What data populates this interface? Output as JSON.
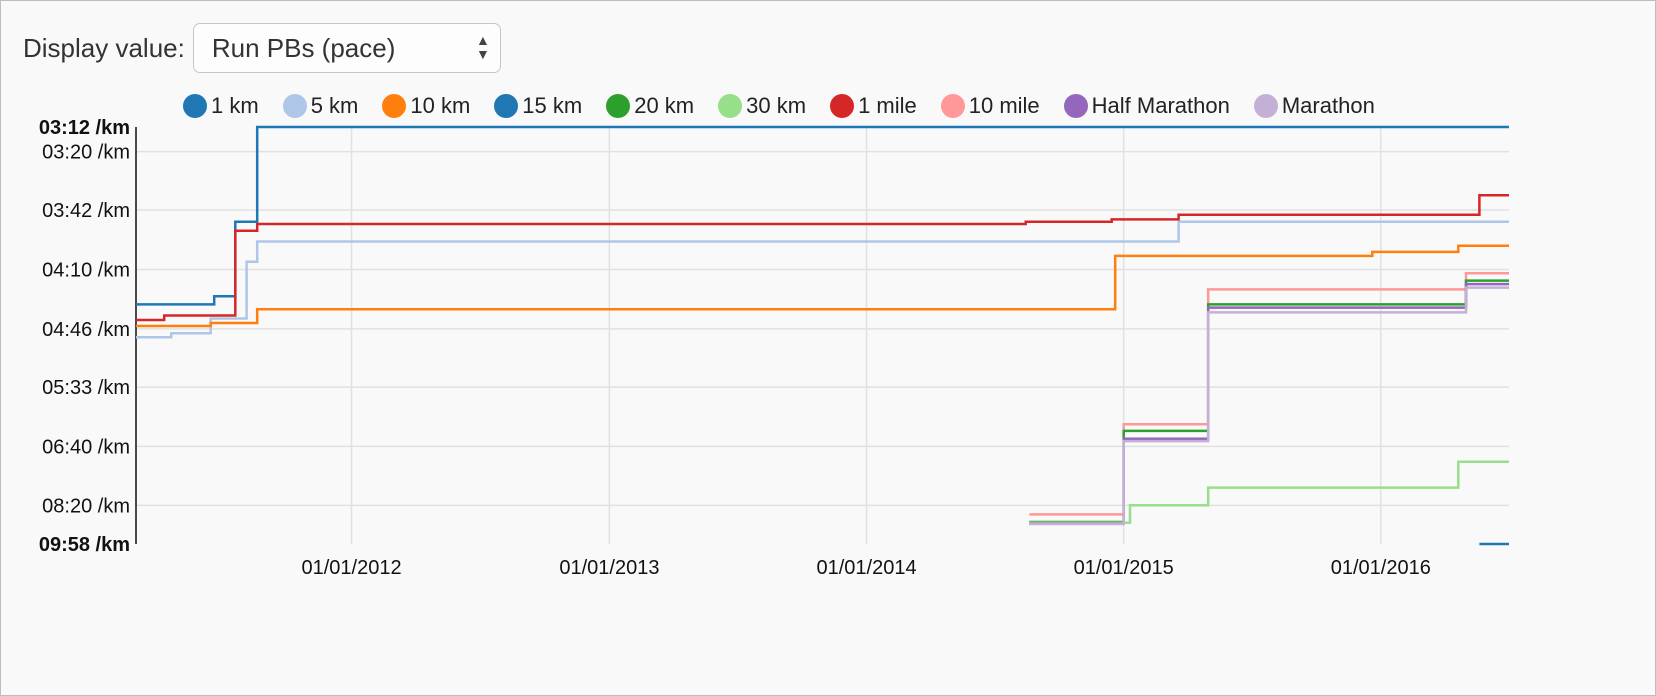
{
  "control": {
    "label": "Display value:",
    "selected": "Run PBs (pace)"
  },
  "legend": [
    {
      "name": "1 km",
      "color": "#1f77b4"
    },
    {
      "name": "5 km",
      "color": "#aec7e8"
    },
    {
      "name": "10 km",
      "color": "#ff7f0e"
    },
    {
      "name": "15 km",
      "color": "#1f77b4"
    },
    {
      "name": "20 km",
      "color": "#2ca02c"
    },
    {
      "name": "30 km",
      "color": "#98df8a"
    },
    {
      "name": "1 mile",
      "color": "#d62728"
    },
    {
      "name": "10 mile",
      "color": "#ff9896"
    },
    {
      "name": "Half Marathon",
      "color": "#9467bd"
    },
    {
      "name": "Marathon",
      "color": "#c5b0d5"
    }
  ],
  "chart_data": {
    "type": "line",
    "step": "after",
    "title": "",
    "xlabel": "",
    "ylabel": "",
    "x_domain": [
      "2011-03-01",
      "2016-07-01"
    ],
    "y_scale": "reciprocal (speed)",
    "y_domain_pace": [
      "09:58 /km",
      "03:12 /km"
    ],
    "y_ticks": [
      "03:20 /km",
      "03:42 /km",
      "04:10 /km",
      "04:46 /km",
      "05:33 /km",
      "06:40 /km",
      "08:20 /km"
    ],
    "y_bound_labels": [
      "03:12 /km",
      "09:58 /km"
    ],
    "x_ticks": [
      "01/01/2012",
      "01/01/2013",
      "01/01/2014",
      "01/01/2015",
      "01/01/2016"
    ],
    "grid": true,
    "series": [
      {
        "name": "1 km",
        "color": "#1f77b4",
        "points": [
          [
            "2016-05-20",
            "09:58 /km"
          ],
          [
            "2016-07-01",
            "09:58 /km"
          ]
        ]
      },
      {
        "name": "15 km",
        "color": "#1f77b4",
        "points": [
          [
            "2011-03-01",
            "04:30 /km"
          ],
          [
            "2011-06-20",
            "04:25 /km"
          ],
          [
            "2011-07-20",
            "03:47 /km"
          ],
          [
            "2011-08-20",
            "03:12 /km"
          ],
          [
            "2016-07-01",
            "03:12 /km"
          ]
        ]
      },
      {
        "name": "5 km",
        "color": "#aec7e8",
        "points": [
          [
            "2011-03-01",
            "04:52 /km"
          ],
          [
            "2011-04-20",
            "04:49 /km"
          ],
          [
            "2011-06-15",
            "04:39 /km"
          ],
          [
            "2011-08-05",
            "04:06 /km"
          ],
          [
            "2011-08-20",
            "03:56 /km"
          ],
          [
            "2015-03-20",
            "03:47 /km"
          ],
          [
            "2016-07-01",
            "03:47 /km"
          ]
        ]
      },
      {
        "name": "10 km",
        "color": "#ff7f0e",
        "points": [
          [
            "2011-03-01",
            "04:44 /km"
          ],
          [
            "2011-06-15",
            "04:42 /km"
          ],
          [
            "2011-08-20",
            "04:33 /km"
          ],
          [
            "2014-12-20",
            "04:03 /km"
          ],
          [
            "2015-12-20",
            "04:01 /km"
          ],
          [
            "2016-04-20",
            "03:58 /km"
          ],
          [
            "2016-07-01",
            "03:58 /km"
          ]
        ]
      },
      {
        "name": "1 mile",
        "color": "#d62728",
        "points": [
          [
            "2011-03-01",
            "04:40 /km"
          ],
          [
            "2011-04-10",
            "04:37 /km"
          ],
          [
            "2011-07-20",
            "03:51 /km"
          ],
          [
            "2011-08-20",
            "03:48 /km"
          ],
          [
            "2014-08-15",
            "03:47 /km"
          ],
          [
            "2014-12-15",
            "03:46 /km"
          ],
          [
            "2015-03-20",
            "03:44 /km"
          ],
          [
            "2016-05-20",
            "03:36 /km"
          ],
          [
            "2016-07-01",
            "03:36 /km"
          ]
        ]
      },
      {
        "name": "10 mile",
        "color": "#ff9896",
        "points": [
          [
            "2014-08-20",
            "08:40 /km"
          ],
          [
            "2015-01-01",
            "06:12 /km"
          ],
          [
            "2015-05-01",
            "04:21 /km"
          ],
          [
            "2016-05-01",
            "04:12 /km"
          ],
          [
            "2016-07-01",
            "04:12 /km"
          ]
        ]
      },
      {
        "name": "20 km",
        "color": "#2ca02c",
        "points": [
          [
            "2014-08-20",
            "08:58 /km"
          ],
          [
            "2015-01-01",
            "06:20 /km"
          ],
          [
            "2015-05-01",
            "04:30 /km"
          ],
          [
            "2016-05-01",
            "04:16 /km"
          ],
          [
            "2016-07-01",
            "04:16 /km"
          ]
        ]
      },
      {
        "name": "30 km",
        "color": "#98df8a",
        "points": [
          [
            "2014-08-20",
            "09:00 /km"
          ],
          [
            "2015-01-10",
            "08:20 /km"
          ],
          [
            "2015-05-01",
            "07:45 /km"
          ],
          [
            "2016-04-20",
            "07:02 /km"
          ],
          [
            "2016-07-01",
            "07:02 /km"
          ]
        ]
      },
      {
        "name": "Half Marathon",
        "color": "#9467bd",
        "points": [
          [
            "2014-08-20",
            "09:02 /km"
          ],
          [
            "2015-01-01",
            "06:30 /km"
          ],
          [
            "2015-05-01",
            "04:32 /km"
          ],
          [
            "2016-05-01",
            "04:18 /km"
          ],
          [
            "2016-07-01",
            "04:18 /km"
          ]
        ]
      },
      {
        "name": "Marathon",
        "color": "#c5b0d5",
        "points": [
          [
            "2014-08-20",
            "09:03 /km"
          ],
          [
            "2015-01-01",
            "06:33 /km"
          ],
          [
            "2015-05-01",
            "04:35 /km"
          ],
          [
            "2016-05-01",
            "04:20 /km"
          ],
          [
            "2016-07-01",
            "04:20 /km"
          ]
        ]
      }
    ]
  }
}
